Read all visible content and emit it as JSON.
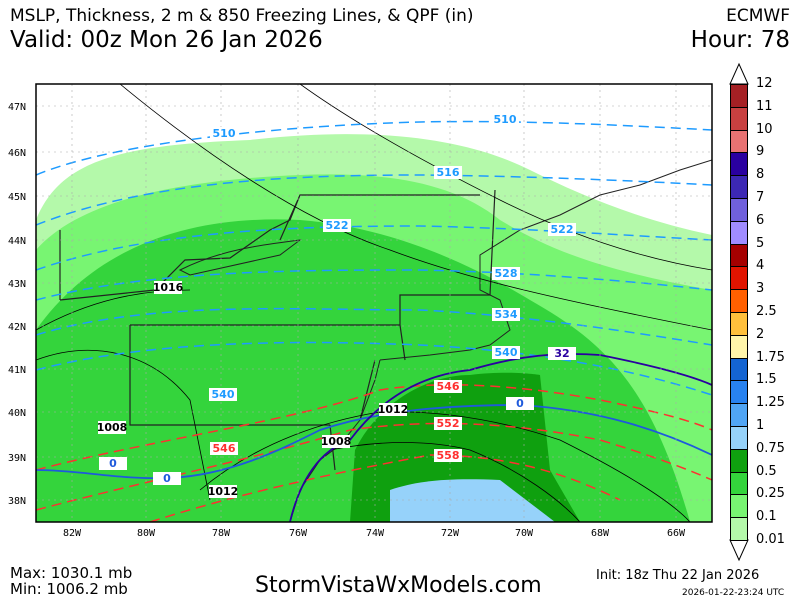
{
  "header": {
    "title": "MSLP, Thickness, 2 m & 850 Freezing Lines, & QPF (in)",
    "model": "ECMWF",
    "valid": "Valid: 00z Mon 26 Jan 2026",
    "hour": "Hour: 78"
  },
  "axes": {
    "lat_ticks": [
      "47N",
      "46N",
      "45N",
      "44N",
      "43N",
      "42N",
      "41N",
      "40N",
      "39N",
      "38N"
    ],
    "lon_ticks": [
      "82W",
      "80W",
      "78W",
      "76W",
      "74W",
      "72W",
      "70W",
      "68W",
      "66W"
    ]
  },
  "colorbar": {
    "labels": [
      "12",
      "11",
      "10",
      "9",
      "8",
      "7",
      "6",
      "5",
      "4",
      "3",
      "2.5",
      "2",
      "1.75",
      "1.5",
      "1.25",
      "1",
      "0.75",
      "0.5",
      "0.25",
      "0.1",
      "0.01"
    ],
    "colors": [
      "#a52024",
      "#c84040",
      "#e87272",
      "#2a00a0",
      "#3c28b4",
      "#7060dc",
      "#a08cff",
      "#a50000",
      "#e11400",
      "#ff6000",
      "#ffc03c",
      "#fff5aa",
      "#1464d2",
      "#2882f0",
      "#50a5f5",
      "#96d2fa",
      "#0fa00f",
      "#34d43c",
      "#78f572",
      "#b4f9aa"
    ]
  },
  "contour_labels": {
    "thickness_cold": [
      "510",
      "510",
      "516",
      "522",
      "522",
      "528",
      "534",
      "540",
      "540"
    ],
    "thickness_warm": [
      "546",
      "552",
      "558",
      "546"
    ],
    "isobars": [
      "1016",
      "1012",
      "1008",
      "1012",
      "1008"
    ],
    "freezing_2m": [
      "0",
      "0",
      "0"
    ],
    "freezing_850": [
      "32"
    ]
  },
  "footer": {
    "max": "Max: 1030.1 mb",
    "min": "Min: 1006.2 mb",
    "site": "StormVistaWxModels.com",
    "init": "Init: 18z Thu 22 Jan 2026",
    "timestamp": "2026-01-22-23:24 UTC"
  }
}
